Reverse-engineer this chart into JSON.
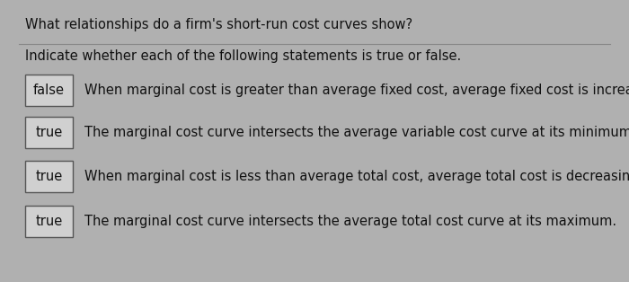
{
  "title": "What relationships do a firm's short-run cost curves show?",
  "subtitle": "Indicate whether each of the following statements is true or false.",
  "rows": [
    {
      "label": "false",
      "text": "When marginal cost is greater than average fixed cost, average fixed cost is increasing."
    },
    {
      "label": "true",
      "text": "The marginal cost curve intersects the average variable cost curve at its minimum."
    },
    {
      "label": "true",
      "text": "When marginal cost is less than average total cost, average total cost is decreasing."
    },
    {
      "label": "true",
      "text": "The marginal cost curve intersects the average total cost curve at its maximum."
    }
  ],
  "bg_color": "#b0b0b0",
  "panel_color": "#e0e0e0",
  "title_fontsize": 10.5,
  "subtitle_fontsize": 10.5,
  "row_fontsize": 10.5,
  "label_fontsize": 10.5,
  "title_color": "#111111",
  "text_color": "#111111",
  "box_edge_color": "#555555",
  "box_face_color": "#d0d0d0",
  "divider_color": "#888888"
}
